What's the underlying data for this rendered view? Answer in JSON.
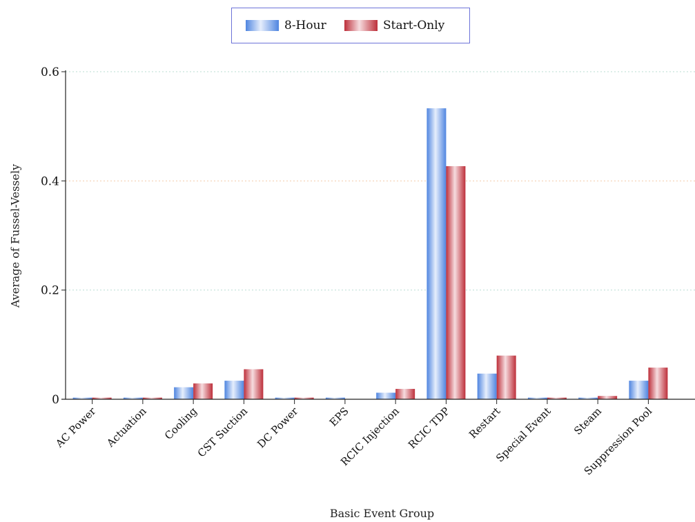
{
  "chart_data": {
    "type": "bar",
    "xlabel": "Basic Event Group",
    "ylabel": "Average of Fussel-Vessely",
    "ylim": [
      0,
      0.6
    ],
    "yticks": [
      0,
      0.2,
      0.4,
      0.6
    ],
    "ytick_labels": [
      "0",
      "0.2",
      "0.4",
      "0.6"
    ],
    "grid": true,
    "legend_position": "top-center",
    "categories": [
      "AC Power",
      "Actuation",
      "Cooling",
      "CST Suction",
      "DC Power",
      "EPS",
      "RCIC Injection",
      "RCIC TDP",
      "Restart",
      "Special Event",
      "Steam",
      "Suppression Pool"
    ],
    "series": [
      {
        "name": "8-Hour",
        "color": "#5b8ee6",
        "values": [
          0.003,
          0.003,
          0.022,
          0.034,
          0.003,
          0.003,
          0.012,
          0.533,
          0.047,
          0.003,
          0.003,
          0.034
        ]
      },
      {
        "name": "Start-Only",
        "color": "#c63a44",
        "values": [
          0.003,
          0.003,
          0.029,
          0.055,
          0.003,
          0.0,
          0.019,
          0.427,
          0.08,
          0.003,
          0.006,
          0.058
        ]
      }
    ]
  }
}
